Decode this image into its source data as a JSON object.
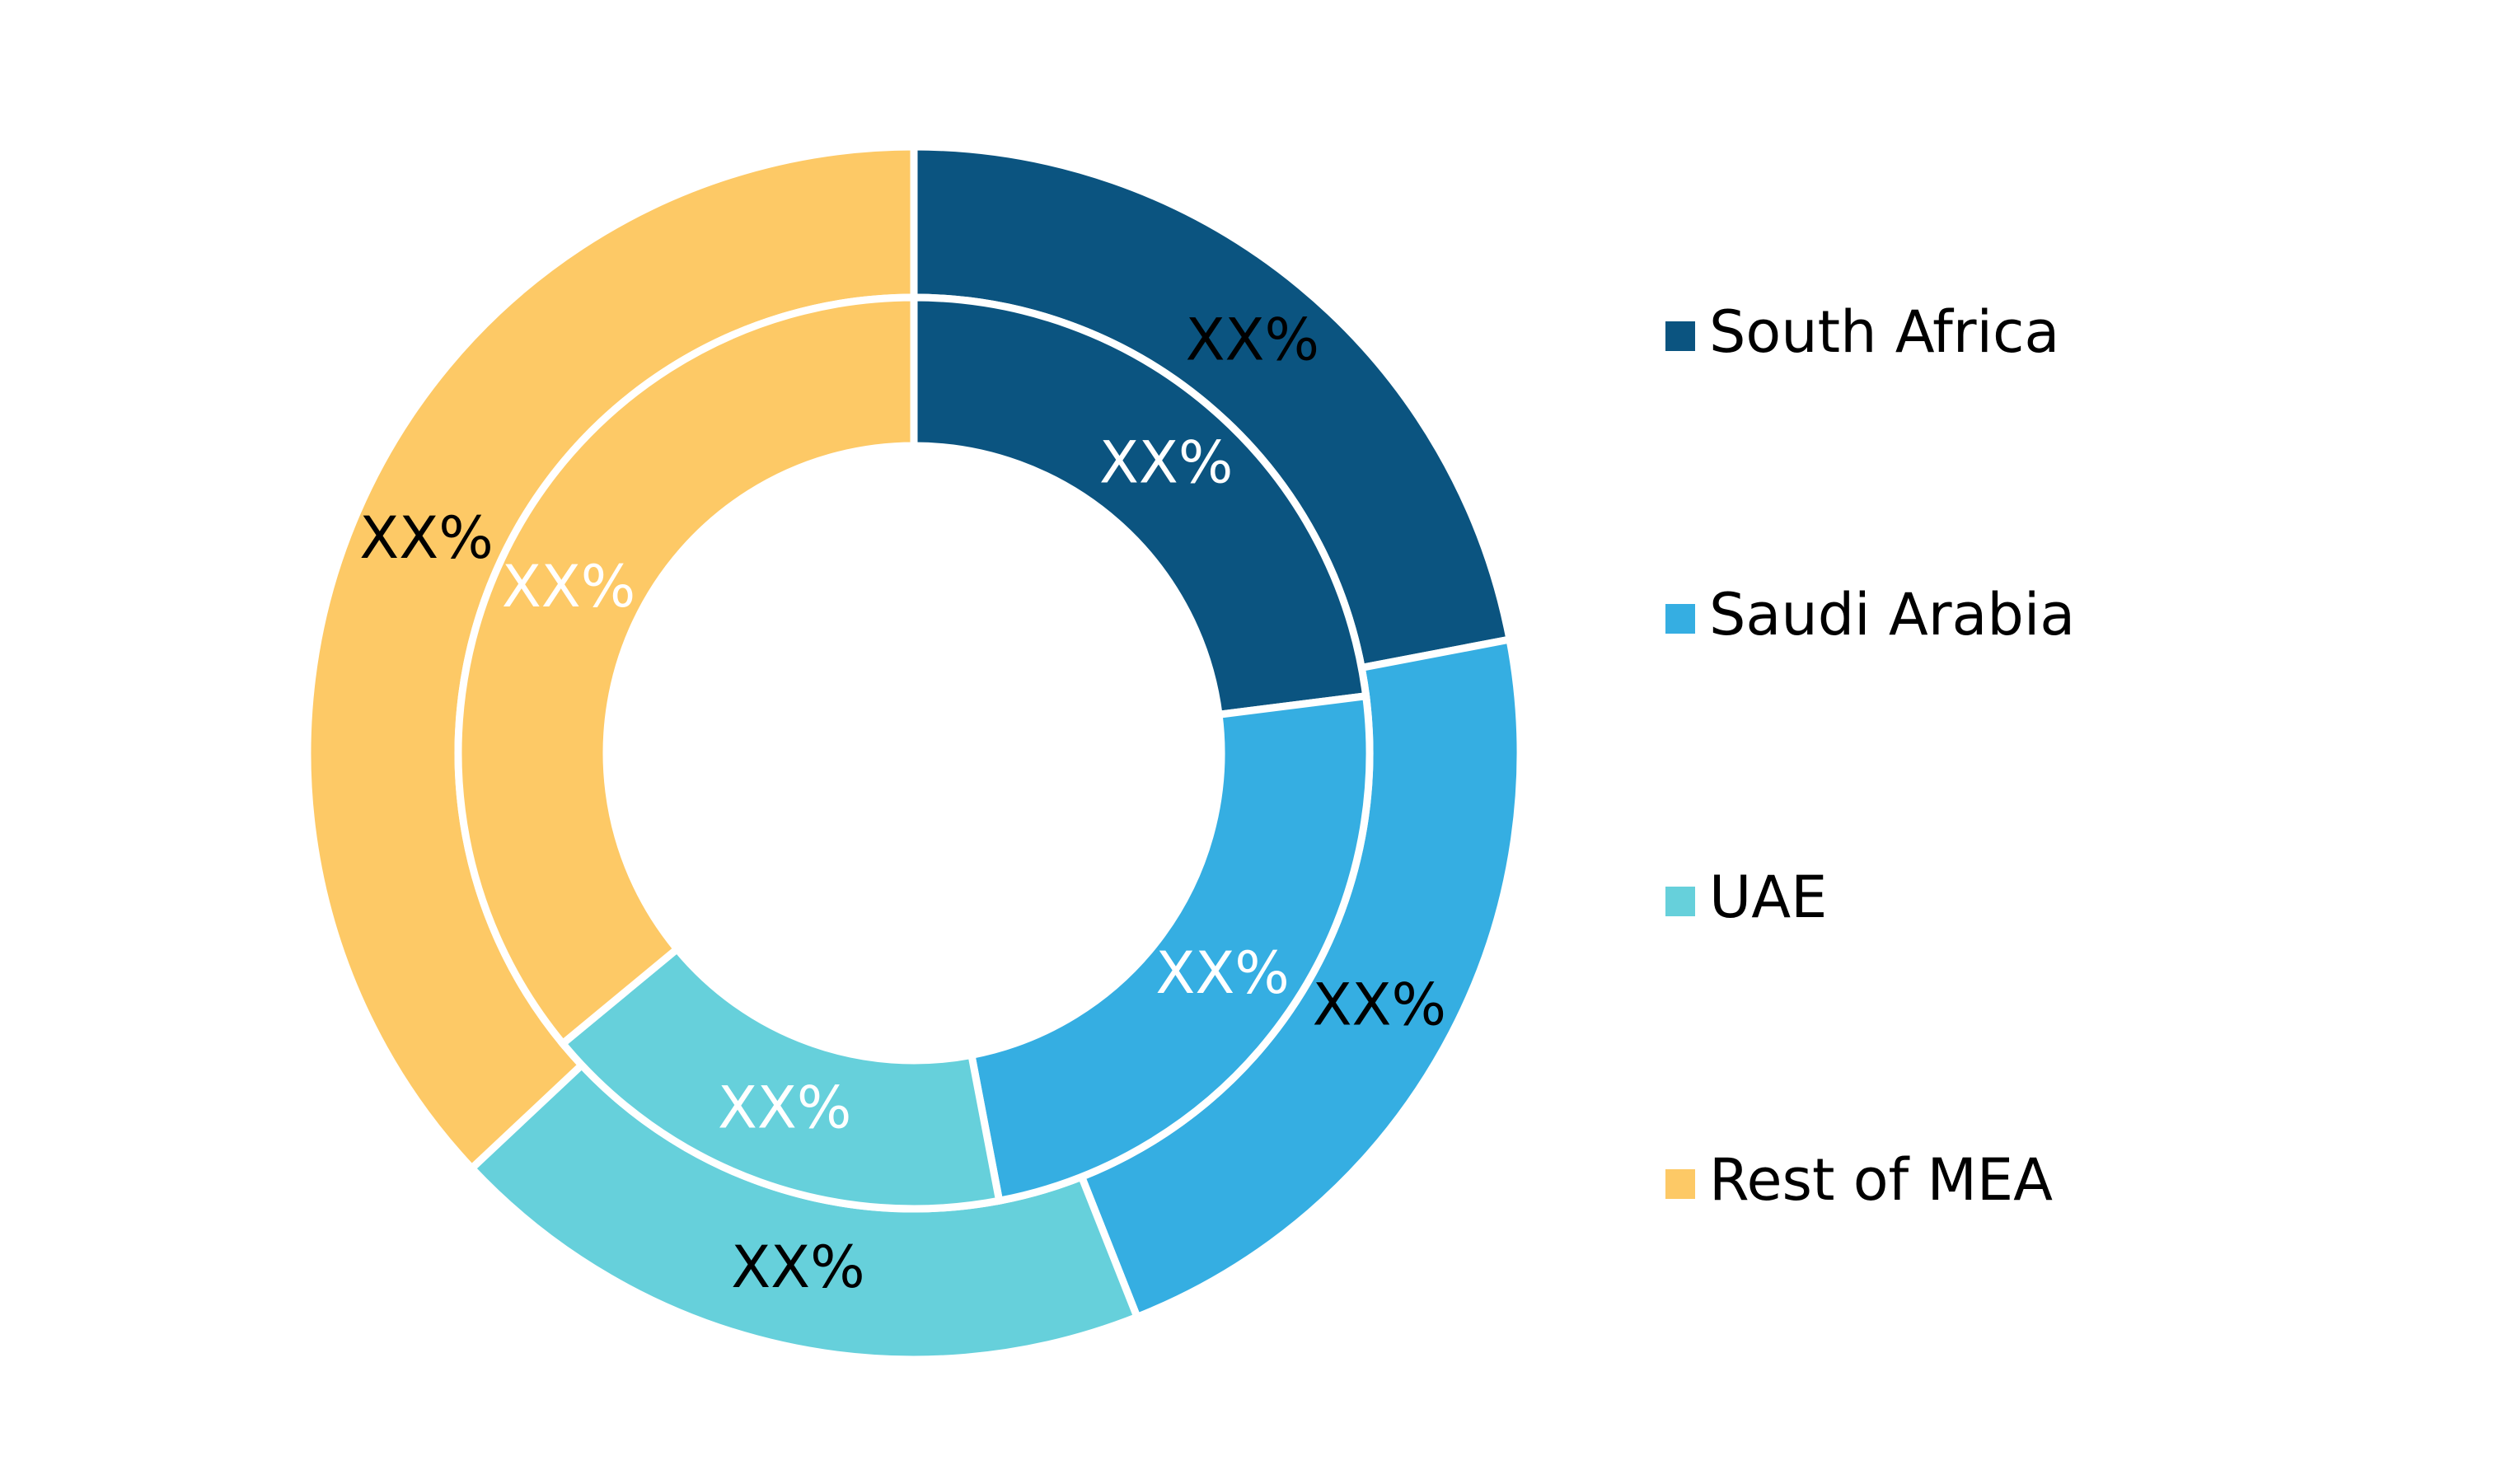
{
  "chart_data": {
    "type": "donut",
    "categories": [
      "South Africa",
      "Saudi Arabia",
      "UAE",
      "Rest of MEA"
    ],
    "colors": [
      "#0b5480",
      "#35aee2",
      "#66d0db",
      "#fdc966"
    ],
    "series": [
      {
        "values": [
          22,
          22,
          19,
          37
        ],
        "value_labels": [
          "XX%",
          "XX%",
          "XX%",
          "XX%"
        ]
      },
      {
        "values": [
          23,
          24,
          17,
          36
        ],
        "value_labels": [
          "XX%",
          "XX%",
          "XX%",
          "XX%"
        ]
      }
    ],
    "legend": "right"
  }
}
